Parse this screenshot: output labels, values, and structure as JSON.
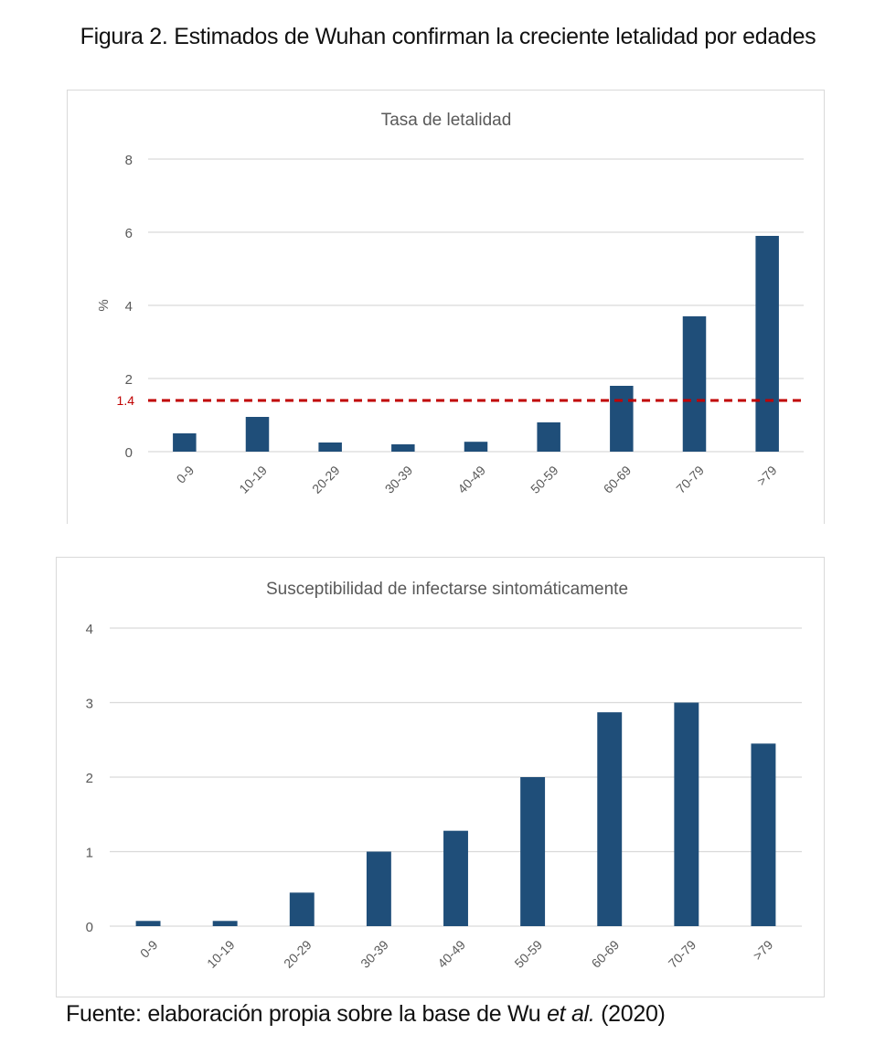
{
  "figure": {
    "title": "Figura 2. Estimados de Wuhan confirman la creciente letalidad por edades",
    "source_prefix": "Fuente: elaboración propia sobre la base de Wu ",
    "source_italic": "et al.",
    "source_suffix": " (2020)"
  },
  "colors": {
    "bar": "#1f4e79",
    "reference_line": "#c00000",
    "gridline": "#d9d9d9",
    "axis_text": "#595959"
  },
  "chart_data": [
    {
      "type": "bar",
      "title": "Tasa de letalidad",
      "xlabel": "",
      "ylabel": "%",
      "categories": [
        "0-9",
        "10-19",
        "20-29",
        "30-39",
        "40-49",
        "50-59",
        "60-69",
        "70-79",
        ">79"
      ],
      "values": [
        0.5,
        0.95,
        0.25,
        0.2,
        0.27,
        0.8,
        1.8,
        3.7,
        5.9
      ],
      "ylim": [
        0,
        8
      ],
      "yticks": [
        0,
        2,
        4,
        6,
        8
      ],
      "grid": true,
      "reference_line": {
        "value": 1.4,
        "label": "1.4",
        "style": "dashed"
      }
    },
    {
      "type": "bar",
      "title": "Susceptibilidad de infectarse sintomáticamente",
      "xlabel": "",
      "ylabel": "",
      "categories": [
        "0-9",
        "10-19",
        "20-29",
        "30-39",
        "40-49",
        "50-59",
        "60-69",
        "70-79",
        ">79"
      ],
      "values": [
        0.07,
        0.07,
        0.45,
        1.0,
        1.28,
        2.0,
        2.87,
        3.0,
        2.45
      ],
      "ylim": [
        0,
        4
      ],
      "yticks": [
        0,
        1,
        2,
        3,
        4
      ],
      "grid": true
    }
  ]
}
